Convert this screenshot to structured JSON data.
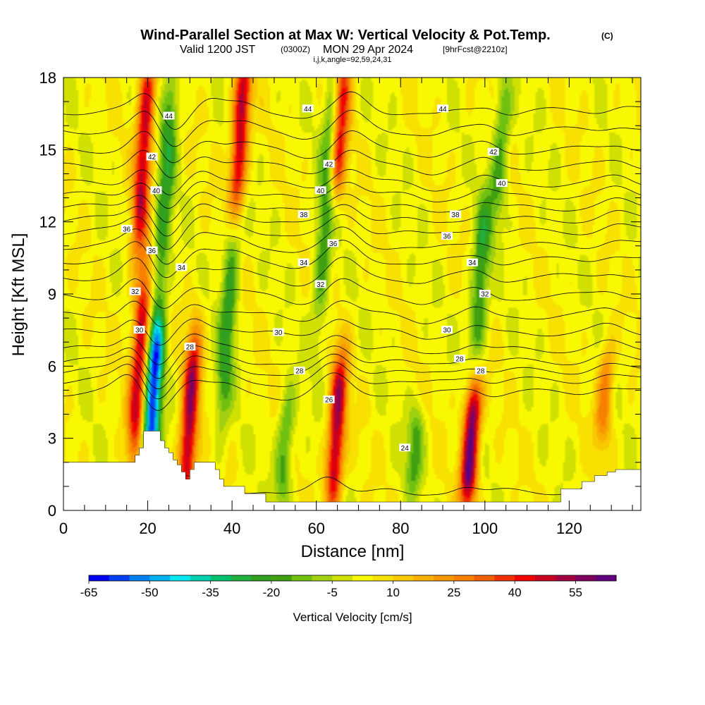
{
  "header": {
    "title": "Wind-Parallel Section at Max W: Vertical Velocity & Pot.Temp.",
    "copyright": "(C)",
    "valid_prefix": "Valid 1200 JST",
    "valid_zulu": "(0300Z)",
    "valid_date": "MON 29 Apr 2024",
    "forecast": "[9hrFcst@2210z]",
    "indices": "i,j,k,angle=92,59,24,31"
  },
  "chart_data": {
    "type": "heatmap",
    "xlabel": "Distance [nm]",
    "ylabel": "Height [Kft MSL]",
    "xlim": [
      0,
      137
    ],
    "ylim": [
      0,
      18
    ],
    "x_ticks": [
      0,
      20,
      40,
      60,
      80,
      100,
      120
    ],
    "x_tick_labels": [
      "0",
      "20",
      "40",
      "60",
      "80",
      "100",
      "120"
    ],
    "y_ticks": [
      0,
      3,
      6,
      9,
      12,
      15,
      18
    ],
    "y_tick_labels": [
      "0",
      "3",
      "6",
      "9",
      "12",
      "15",
      "18"
    ],
    "colorbar": {
      "label": "Vertical Velocity [cm/s]",
      "levels": [
        -65,
        -60,
        -55,
        -50,
        -45,
        -40,
        -35,
        -30,
        -25,
        -20,
        -15,
        -10,
        -5,
        0,
        5,
        10,
        15,
        20,
        25,
        30,
        35,
        40,
        45,
        50,
        55,
        60
      ],
      "tick_values": [
        -65,
        -50,
        -35,
        -20,
        -5,
        10,
        25,
        40,
        55
      ],
      "tick_labels": [
        "-65",
        "-50",
        "-35",
        "-20",
        "-5",
        "10",
        "25",
        "40",
        "55"
      ],
      "colors": [
        "#0000f0",
        "#0040f0",
        "#0080f0",
        "#00b0f0",
        "#00e8f0",
        "#00d0b0",
        "#00c070",
        "#20b040",
        "#30a020",
        "#40a010",
        "#70c010",
        "#a0d010",
        "#d0e000",
        "#f8f800",
        "#f8e000",
        "#f8c800",
        "#f8b000",
        "#f89800",
        "#f88000",
        "#f06000",
        "#f03000",
        "#f00000",
        "#c80020",
        "#a00040",
        "#800060",
        "#600080"
      ]
    },
    "updrafts": [
      {
        "x": 17,
        "z_low": 3.3,
        "z_high": 9,
        "peak": 45
      },
      {
        "x": 18,
        "z_low": 12,
        "z_high": 18,
        "peak": 45
      },
      {
        "x": 29,
        "z_low": 1.2,
        "z_high": 6.3,
        "peak": 50
      },
      {
        "x": 41,
        "z_low": 13,
        "z_high": 18,
        "peak": 50
      },
      {
        "x": 64,
        "z_low": 1.0,
        "z_high": 5.5,
        "peak": 50
      },
      {
        "x": 65,
        "z_low": 14,
        "z_high": 18,
        "peak": 40
      },
      {
        "x": 96,
        "z_low": 1.0,
        "z_high": 4.5,
        "peak": 60
      },
      {
        "x": 128,
        "z_low": 3.5,
        "z_high": 6,
        "peak": 25
      }
    ],
    "downdrafts": [
      {
        "x": 20.5,
        "z_low": 2.6,
        "z_high": 7,
        "peak": -62
      },
      {
        "x": 23,
        "z_low": 10,
        "z_high": 17,
        "peak": -25
      },
      {
        "x": 38,
        "z_low": 5,
        "z_high": 12,
        "peak": -25
      },
      {
        "x": 61,
        "z_low": 9,
        "z_high": 17,
        "peak": -22
      },
      {
        "x": 52,
        "z_low": 1,
        "z_high": 4,
        "peak": -20
      },
      {
        "x": 83,
        "z_low": 1.5,
        "z_high": 3.5,
        "peak": -20
      },
      {
        "x": 98,
        "z_low": 7,
        "z_high": 12,
        "peak": -25
      },
      {
        "x": 103,
        "z_low": 13,
        "z_high": 17,
        "peak": -20
      }
    ],
    "terrain": {
      "x": [
        0,
        16,
        17,
        18,
        19,
        22,
        23,
        24,
        25,
        26,
        27,
        28,
        29,
        30,
        31,
        35,
        36,
        37,
        38,
        42,
        43,
        47,
        48,
        92,
        93,
        117,
        118,
        122,
        123,
        125,
        126,
        128,
        129,
        130,
        131,
        137
      ],
      "z": [
        2.0,
        2.0,
        2.3,
        2.6,
        3.3,
        3.3,
        2.9,
        2.6,
        2.4,
        2.1,
        1.9,
        1.6,
        1.3,
        1.7,
        2.0,
        2.0,
        1.7,
        1.3,
        1.0,
        1.0,
        0.7,
        0.7,
        0.35,
        0.35,
        0.35,
        0.35,
        0.9,
        0.9,
        1.2,
        1.2,
        1.45,
        1.45,
        1.6,
        1.6,
        1.7,
        1.7
      ]
    },
    "theta_contours": {
      "units": "K",
      "base_levels": [
        {
          "value": 24,
          "z": 0.8
        },
        {
          "value": 25,
          "z": 4.9
        },
        {
          "value": 26,
          "z": 5.4
        },
        {
          "value": 27,
          "z": 5.8
        },
        {
          "value": 28,
          "z": 6.2
        },
        {
          "value": 29,
          "z": 6.7
        },
        {
          "value": 30,
          "z": 7.4
        },
        {
          "value": 31,
          "z": 8.1
        },
        {
          "value": 32,
          "z": 8.9
        },
        {
          "value": 33,
          "z": 9.7
        },
        {
          "value": 34,
          "z": 10.4
        },
        {
          "value": 35,
          "z": 11.0
        },
        {
          "value": 36,
          "z": 11.6
        },
        {
          "value": 37,
          "z": 12.1
        },
        {
          "value": 38,
          "z": 12.6
        },
        {
          "value": 39,
          "z": 13.1
        },
        {
          "value": 40,
          "z": 13.6
        },
        {
          "value": 41,
          "z": 14.3
        },
        {
          "value": 42,
          "z": 15.0
        },
        {
          "value": 43,
          "z": 15.8
        },
        {
          "value": 44,
          "z": 16.6
        }
      ],
      "labels": [
        {
          "text": "44",
          "x": 25,
          "z": 16.4
        },
        {
          "text": "44",
          "x": 58,
          "z": 16.7
        },
        {
          "text": "44",
          "x": 90,
          "z": 16.7
        },
        {
          "text": "42",
          "x": 21,
          "z": 14.7
        },
        {
          "text": "42",
          "x": 63,
          "z": 14.4
        },
        {
          "text": "42",
          "x": 102,
          "z": 14.9
        },
        {
          "text": "40",
          "x": 22,
          "z": 13.3
        },
        {
          "text": "40",
          "x": 61,
          "z": 13.3
        },
        {
          "text": "40",
          "x": 104,
          "z": 13.6
        },
        {
          "text": "38",
          "x": 57,
          "z": 12.3
        },
        {
          "text": "38",
          "x": 93,
          "z": 12.3
        },
        {
          "text": "36",
          "x": 15,
          "z": 11.7
        },
        {
          "text": "36",
          "x": 21,
          "z": 10.8
        },
        {
          "text": "36",
          "x": 64,
          "z": 11.1
        },
        {
          "text": "36",
          "x": 91,
          "z": 11.4
        },
        {
          "text": "34",
          "x": 28,
          "z": 10.1
        },
        {
          "text": "34",
          "x": 57,
          "z": 10.3
        },
        {
          "text": "34",
          "x": 97,
          "z": 10.3
        },
        {
          "text": "32",
          "x": 17,
          "z": 9.1
        },
        {
          "text": "32",
          "x": 61,
          "z": 9.4
        },
        {
          "text": "32",
          "x": 100,
          "z": 9.0
        },
        {
          "text": "30",
          "x": 18,
          "z": 7.5
        },
        {
          "text": "30",
          "x": 51,
          "z": 7.4
        },
        {
          "text": "30",
          "x": 91,
          "z": 7.5
        },
        {
          "text": "28",
          "x": 30,
          "z": 6.8
        },
        {
          "text": "28",
          "x": 56,
          "z": 5.8
        },
        {
          "text": "28",
          "x": 94,
          "z": 6.3
        },
        {
          "text": "28",
          "x": 99,
          "z": 5.8
        },
        {
          "text": "26",
          "x": 63,
          "z": 4.6
        },
        {
          "text": "24",
          "x": 81,
          "z": 2.6
        }
      ]
    }
  }
}
